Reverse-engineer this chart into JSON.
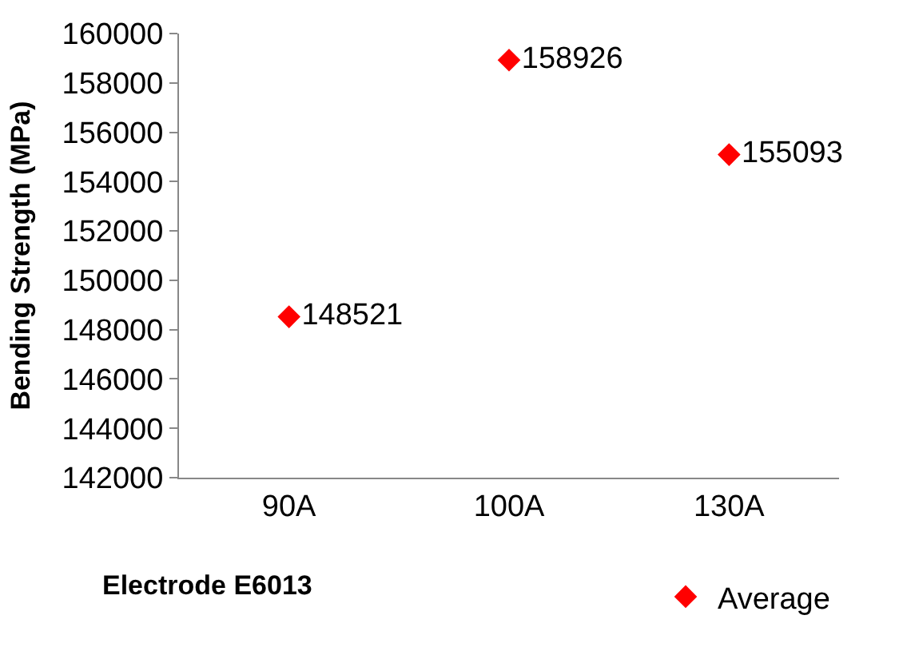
{
  "chart_data": {
    "type": "scatter",
    "xlabel": "Electrode E6013",
    "ylabel": "Bending Strength (MPa)",
    "categories": [
      "90A",
      "100A",
      "130A"
    ],
    "series": [
      {
        "name": "Average",
        "color": "#ff0000",
        "values": [
          148521,
          158926,
          155093
        ]
      }
    ],
    "ylim": [
      142000,
      160000
    ],
    "yticks": [
      142000,
      144000,
      146000,
      148000,
      150000,
      152000,
      154000,
      156000,
      158000,
      160000
    ],
    "grid": false,
    "legend": "bottom right",
    "marker": "diamond",
    "data_labels": true
  }
}
